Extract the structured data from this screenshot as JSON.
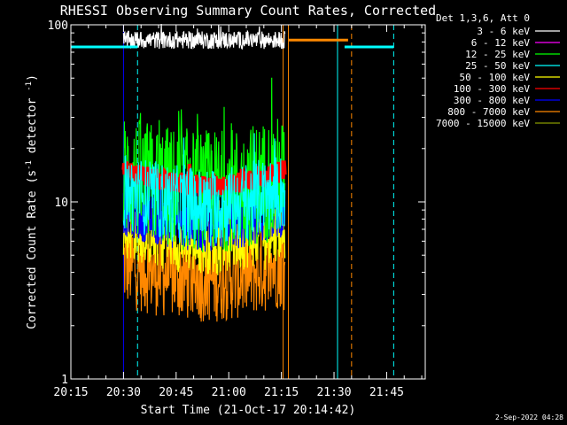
{
  "chart_data": {
    "type": "line",
    "title": "RHESSI Observing Summary Count Rates, Corrected",
    "xlabel": "Start Time (21-Oct-17 20:14:42)",
    "ylabel_prefix": "Corrected Count Rate (s",
    "ylabel_sup": "-1",
    "ylabel_suffix": " detector",
    "ylabel_sup2": "-1",
    "ylabel_end": ")",
    "y_scale": "log",
    "ylim": [
      1,
      100
    ],
    "y_tick_labels": [
      "1",
      "10",
      "100"
    ],
    "y_ticks": [
      1,
      10,
      100
    ],
    "x_tick_labels": [
      "20:15",
      "20:30",
      "20:45",
      "21:00",
      "21:15",
      "21:30",
      "21:45"
    ],
    "x_ticks_min": [
      15,
      30,
      45,
      60,
      75,
      90,
      105
    ],
    "xlim_min": [
      15,
      116
    ],
    "legend_header": "Det 1,3,6, Att 0",
    "legend_placement": "right",
    "footer_date": "2-Sep-2022 04:28",
    "data_interval_min": [
      30,
      76
    ],
    "series": [
      {
        "name": "3 - 6 keV",
        "color": "#ffffff",
        "level": 82,
        "noise": 0.05
      },
      {
        "name": "6 - 12 keV",
        "color": "#ff00ff",
        "level": 0,
        "noise": 0
      },
      {
        "name": "12 - 25 keV",
        "color": "#00ff00",
        "level": 14,
        "noise": 0.35
      },
      {
        "name": "25 - 50 keV",
        "color": "#00ffff",
        "level": 11.5,
        "noise": 0.22
      },
      {
        "name": "50 - 100 keV",
        "color": "#ffff00",
        "level": 7.2,
        "noise": 0.18
      },
      {
        "name": "100 - 300 keV",
        "color": "#ff0000",
        "level": 15,
        "noise": 0.06
      },
      {
        "name": "300 - 800 keV",
        "color": "#0000ff",
        "level": 8.8,
        "noise": 0.14
      },
      {
        "name": "800 - 7000 keV",
        "color": "#ff8800",
        "level": 4.5,
        "noise": 0.25
      },
      {
        "name": "7000 - 15000 keV",
        "color": "#889900",
        "level": 0,
        "noise": 0
      }
    ],
    "attenuator_segments": [
      {
        "color": "#00ffff",
        "x": [
          15,
          34
        ],
        "y": 75
      },
      {
        "color": "#ff8800",
        "x": [
          77,
          94
        ],
        "y": 82
      },
      {
        "color": "#00ffff",
        "x": [
          93,
          107
        ],
        "y": 75
      }
    ],
    "markers_solid": [
      {
        "color": "#00ffff",
        "x": 15
      },
      {
        "color": "#0000ff",
        "x": 30
      },
      {
        "color": "#ff8800",
        "x": 75.5
      },
      {
        "color": "#ff8800",
        "x": 77
      },
      {
        "color": "#00ffff",
        "x": 91
      }
    ],
    "markers_dashed": [
      {
        "color": "#00ffff",
        "x": 34
      },
      {
        "color": "#ff8800",
        "x": 95
      },
      {
        "color": "#00ffff",
        "x": 107
      }
    ]
  }
}
